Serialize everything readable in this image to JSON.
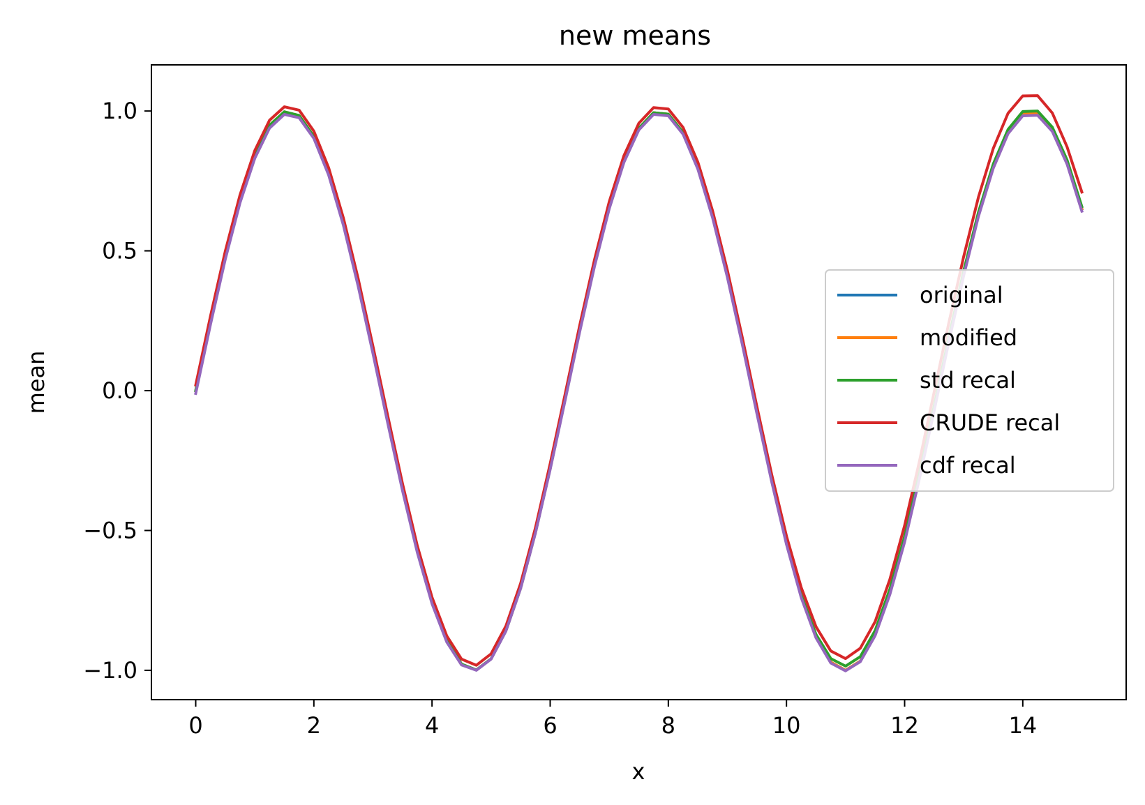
{
  "chart_data": {
    "type": "line",
    "title": "new means",
    "xlabel": "x",
    "ylabel": "mean",
    "xlim": [
      -0.75,
      15.75
    ],
    "ylim": [
      -1.105,
      1.165
    ],
    "xticks": [
      0,
      2,
      4,
      6,
      8,
      10,
      12,
      14
    ],
    "xtick_labels": [
      "0",
      "2",
      "4",
      "6",
      "8",
      "10",
      "12",
      "14"
    ],
    "yticks": [
      -1.0,
      -0.5,
      0.0,
      0.5,
      1.0
    ],
    "ytick_labels": [
      "−1.0",
      "−0.5",
      "0.0",
      "0.5",
      "1.0"
    ],
    "grid": false,
    "legend_position": "center-right",
    "x": [
      0,
      0.25,
      0.5,
      0.75,
      1,
      1.25,
      1.5,
      1.75,
      2,
      2.25,
      2.5,
      2.75,
      3,
      3.25,
      3.5,
      3.75,
      4,
      4.25,
      4.5,
      4.75,
      5,
      5.25,
      5.5,
      5.75,
      6,
      6.25,
      6.5,
      6.75,
      7,
      7.25,
      7.5,
      7.75,
      8,
      8.25,
      8.5,
      8.75,
      9,
      9.25,
      9.5,
      9.75,
      10,
      10.25,
      10.5,
      10.75,
      11,
      11.25,
      11.5,
      11.75,
      12,
      12.25,
      12.5,
      12.75,
      13,
      13.25,
      13.5,
      13.75,
      14,
      14.25,
      14.5,
      14.75,
      15
    ],
    "series": [
      {
        "name": "original",
        "color": "#1f77b4",
        "values": [
          0.0,
          0.247,
          0.479,
          0.682,
          0.841,
          0.949,
          0.997,
          0.984,
          0.909,
          0.778,
          0.598,
          0.382,
          0.141,
          -0.108,
          -0.351,
          -0.572,
          -0.757,
          -0.895,
          -0.978,
          -0.999,
          -0.959,
          -0.859,
          -0.706,
          -0.508,
          -0.279,
          -0.033,
          0.215,
          0.45,
          0.657,
          0.823,
          0.938,
          0.994,
          0.989,
          0.923,
          0.798,
          0.625,
          0.412,
          0.174,
          -0.075,
          -0.319,
          -0.544,
          -0.735,
          -0.88,
          -0.971,
          -1.0,
          -0.967,
          -0.874,
          -0.726,
          -0.537,
          -0.31,
          -0.066,
          0.183,
          0.42,
          0.631,
          0.803,
          0.927,
          0.991,
          0.993,
          0.935,
          0.818,
          0.65
        ]
      },
      {
        "name": "modified",
        "color": "#ff7f0e",
        "values": [
          0.0,
          0.247,
          0.479,
          0.682,
          0.841,
          0.949,
          0.997,
          0.984,
          0.909,
          0.778,
          0.598,
          0.382,
          0.141,
          -0.108,
          -0.351,
          -0.572,
          -0.757,
          -0.895,
          -0.978,
          -0.999,
          -0.959,
          -0.859,
          -0.706,
          -0.508,
          -0.279,
          -0.033,
          0.215,
          0.45,
          0.657,
          0.823,
          0.938,
          0.994,
          0.989,
          0.923,
          0.798,
          0.625,
          0.412,
          0.174,
          -0.075,
          -0.319,
          -0.544,
          -0.735,
          -0.88,
          -0.971,
          -1.0,
          -0.967,
          -0.874,
          -0.726,
          -0.537,
          -0.31,
          -0.066,
          0.183,
          0.42,
          0.631,
          0.803,
          0.927,
          0.991,
          0.993,
          0.935,
          0.818,
          0.65
        ]
      },
      {
        "name": "std recal",
        "color": "#2ca02c",
        "values": [
          0.0,
          0.247,
          0.479,
          0.682,
          0.841,
          0.949,
          0.997,
          0.984,
          0.909,
          0.778,
          0.598,
          0.382,
          0.141,
          -0.108,
          -0.351,
          -0.572,
          -0.757,
          -0.895,
          -0.978,
          -0.999,
          -0.959,
          -0.859,
          -0.706,
          -0.508,
          -0.279,
          -0.033,
          0.215,
          0.45,
          0.657,
          0.823,
          0.938,
          0.994,
          0.989,
          0.923,
          0.798,
          0.625,
          0.412,
          0.174,
          -0.075,
          -0.319,
          -0.544,
          -0.731,
          -0.872,
          -0.958,
          -0.985,
          -0.951,
          -0.858,
          -0.71,
          -0.521,
          -0.296,
          -0.055,
          0.192,
          0.428,
          0.638,
          0.81,
          0.934,
          0.998,
          1.0,
          0.942,
          0.825,
          0.658
        ]
      },
      {
        "name": "CRUDE recal",
        "color": "#d62728",
        "values": [
          0.02,
          0.267,
          0.498,
          0.7,
          0.859,
          0.967,
          1.015,
          1.003,
          0.928,
          0.797,
          0.617,
          0.401,
          0.159,
          -0.09,
          -0.332,
          -0.554,
          -0.739,
          -0.877,
          -0.96,
          -0.982,
          -0.941,
          -0.842,
          -0.689,
          -0.491,
          -0.261,
          -0.015,
          0.233,
          0.468,
          0.676,
          0.841,
          0.956,
          1.012,
          1.007,
          0.941,
          0.817,
          0.643,
          0.43,
          0.192,
          -0.057,
          -0.3,
          -0.52,
          -0.704,
          -0.844,
          -0.931,
          -0.958,
          -0.921,
          -0.826,
          -0.675,
          -0.482,
          -0.253,
          -0.005,
          0.244,
          0.48,
          0.692,
          0.866,
          0.992,
          1.054,
          1.055,
          0.993,
          0.872,
          0.71
        ]
      },
      {
        "name": "cdf recal",
        "color": "#9467bd",
        "values": [
          -0.01,
          0.237,
          0.469,
          0.672,
          0.831,
          0.939,
          0.988,
          0.976,
          0.902,
          0.771,
          0.591,
          0.374,
          0.133,
          -0.116,
          -0.357,
          -0.578,
          -0.762,
          -0.899,
          -0.981,
          -1.0,
          -0.96,
          -0.86,
          -0.707,
          -0.51,
          -0.282,
          -0.037,
          0.21,
          0.444,
          0.651,
          0.817,
          0.932,
          0.988,
          0.983,
          0.917,
          0.792,
          0.618,
          0.405,
          0.167,
          -0.082,
          -0.326,
          -0.55,
          -0.74,
          -0.884,
          -0.974,
          -1.002,
          -0.969,
          -0.876,
          -0.729,
          -0.541,
          -0.315,
          -0.072,
          0.176,
          0.412,
          0.623,
          0.795,
          0.919,
          0.983,
          0.985,
          0.927,
          0.81,
          0.642
        ]
      }
    ]
  }
}
